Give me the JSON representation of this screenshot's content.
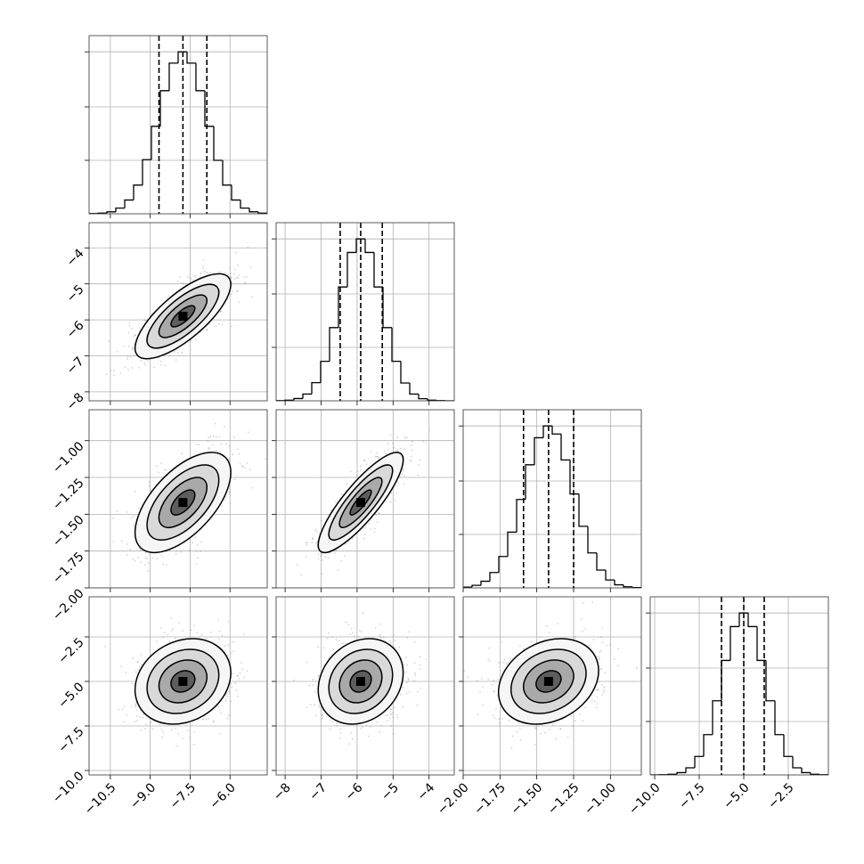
{
  "chart_data": {
    "type": "corner",
    "color": "#000000",
    "point_color": "#808080",
    "grid": true,
    "parameters": [
      {
        "lim": [
          -11.3,
          -4.6
        ],
        "ticks": [
          {
            "value": -10.5,
            "label": "−10.5"
          },
          {
            "value": -9.0,
            "label": "−9.0"
          },
          {
            "value": -7.5,
            "label": "−7.5"
          },
          {
            "value": -6.0,
            "label": "−6.0"
          }
        ],
        "bins": [
          -11.3,
          -10.965,
          -10.63,
          -10.295,
          -9.96,
          -9.625,
          -9.29,
          -8.955,
          -8.62,
          -8.285,
          -7.95,
          -7.615,
          -7.28,
          -6.945,
          -6.61,
          -6.275,
          -5.94,
          -5.605,
          -5.27,
          -4.935,
          -4.6
        ],
        "counts": [
          0.1,
          0.4,
          1.2,
          3.5,
          8.5,
          17.7,
          33.4,
          54,
          76,
          93,
          100,
          93,
          76,
          54,
          33,
          17.7,
          8.5,
          3.5,
          1.2,
          0.4
        ],
        "hist_ylim": [
          0,
          110
        ],
        "hist_yticks": [
          33,
          66,
          100
        ],
        "quantiles": [
          -8.67,
          -7.77,
          -6.87
        ],
        "mean": -7.77,
        "sd": 0.9
      },
      {
        "lim": [
          -8.25,
          -3.3
        ],
        "ticks": [
          {
            "value": -8,
            "label": "−8"
          },
          {
            "value": -7,
            "label": "−7"
          },
          {
            "value": -6,
            "label": "−6"
          },
          {
            "value": -5,
            "label": "−5"
          },
          {
            "value": -4,
            "label": "−4"
          }
        ],
        "bins": [
          -8.25,
          -8.0025,
          -7.755,
          -7.5075,
          -7.26,
          -7.0125,
          -6.765,
          -6.5175,
          -6.27,
          -6.0225,
          -5.775,
          -5.5275,
          -5.28,
          -5.0325,
          -4.785,
          -4.5375,
          -4.29,
          -4.0425,
          -3.795,
          -3.5475,
          -3.3
        ],
        "counts": [
          0.1,
          0.4,
          1.4,
          4.2,
          11.2,
          24.4,
          45.2,
          70.3,
          91.6,
          100,
          91.6,
          70.3,
          45.2,
          24.4,
          11,
          4.2,
          1.3,
          0.4,
          0.1,
          0
        ],
        "hist_ylim": [
          0,
          110
        ],
        "hist_yticks": [
          33,
          66,
          100
        ],
        "quantiles": [
          -6.47,
          -5.9,
          -5.3
        ],
        "mean": -5.9,
        "sd": 0.59
      },
      {
        "lim": [
          -2.0,
          -0.79
        ],
        "ticks": [
          {
            "value": -2.0,
            "label": "−2.00"
          },
          {
            "value": -1.75,
            "label": "−1.75"
          },
          {
            "value": -1.5,
            "label": "−1.50"
          },
          {
            "value": -1.25,
            "label": "−1.25"
          },
          {
            "value": -1.0,
            "label": "−1.00"
          }
        ],
        "bins": [
          -2.0,
          -1.9395,
          -1.879,
          -1.8185,
          -1.758,
          -1.6975,
          -1.637,
          -1.5765,
          -1.516,
          -1.4555,
          -1.395,
          -1.3345,
          -1.274,
          -1.2135,
          -1.153,
          -1.0925,
          -1.032,
          -0.9715,
          -0.911,
          -0.8505,
          -0.79
        ],
        "counts": [
          0.5,
          1.6,
          4.1,
          9.5,
          19.4,
          34.4,
          54.6,
          76,
          92.7,
          100,
          95,
          79,
          58,
          38,
          21.6,
          11,
          4.9,
          1.9,
          0.7,
          0.2
        ],
        "hist_ylim": [
          0,
          110
        ],
        "hist_yticks": [
          33,
          66,
          100
        ],
        "quantiles": [
          -1.59,
          -1.42,
          -1.25
        ],
        "mean": -1.42,
        "sd": 0.17
      },
      {
        "lim": [
          -10.25,
          -0.25
        ],
        "ticks": [
          {
            "value": -10.0,
            "label": "−10.0"
          },
          {
            "value": -7.5,
            "label": "−7.5"
          },
          {
            "value": -5.0,
            "label": "−5.0"
          },
          {
            "value": -2.5,
            "label": "−2.5"
          }
        ],
        "bins": [
          -10.25,
          -9.75,
          -9.25,
          -8.75,
          -8.25,
          -7.75,
          -7.25,
          -6.75,
          -6.25,
          -5.75,
          -5.25,
          -4.75,
          -4.25,
          -3.75,
          -3.25,
          -2.75,
          -2.25,
          -1.75,
          -1.25,
          -0.75,
          -0.25
        ],
        "counts": [
          0,
          0.1,
          0.4,
          1.4,
          4.4,
          11.4,
          24.9,
          45.8,
          70.7,
          91.6,
          100,
          91.6,
          70.7,
          45.8,
          24.9,
          11.4,
          4.4,
          1.4,
          0.4,
          0.1
        ],
        "hist_ylim": [
          0,
          110
        ],
        "hist_yticks": [
          33,
          66,
          100
        ],
        "quantiles": [
          -6.25,
          -5.0,
          -3.85
        ],
        "mean": -5.0,
        "sd": 1.2
      }
    ],
    "pairs": [
      {
        "x": 0,
        "y": 1,
        "rho": 0.75
      },
      {
        "x": 0,
        "y": 2,
        "rho": 0.6
      },
      {
        "x": 1,
        "y": 2,
        "rho": 0.85
      },
      {
        "x": 0,
        "y": 3,
        "rho": 0.2
      },
      {
        "x": 1,
        "y": 3,
        "rho": 0.2
      },
      {
        "x": 2,
        "y": 3,
        "rho": 0.25
      }
    ],
    "contour_sigmas": [
      2,
      1.5,
      1,
      0.5
    ]
  }
}
